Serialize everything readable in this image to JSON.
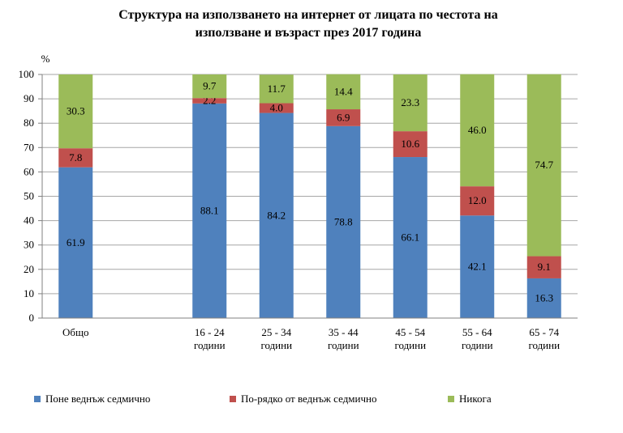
{
  "title_line1": "Структура на използването на интернет от лицата по честота на",
  "title_line2": "използване и възраст през 2017 година",
  "chart_data": {
    "type": "bar",
    "stacked": true,
    "ylabel": "%",
    "ylim": [
      0,
      100
    ],
    "yticks": [
      0,
      10,
      20,
      30,
      40,
      50,
      60,
      70,
      80,
      90,
      100
    ],
    "grid": true,
    "legend_position": "bottom",
    "categories": [
      [
        "Общо"
      ],
      [
        "16 - 24",
        "години"
      ],
      [
        "25 - 34",
        "години"
      ],
      [
        "35 - 44",
        "години"
      ],
      [
        "45 - 54",
        "години"
      ],
      [
        "55 - 64",
        "години"
      ],
      [
        "65 - 74",
        "години"
      ]
    ],
    "series": [
      {
        "name": "Поне веднъж седмично",
        "color": "#4f81bd",
        "values": [
          61.9,
          88.1,
          84.2,
          78.8,
          66.1,
          42.1,
          16.3
        ]
      },
      {
        "name": "По-рядко от веднъж седмично",
        "color": "#c0504d",
        "values": [
          7.8,
          2.2,
          4.0,
          6.9,
          10.6,
          12.0,
          9.1
        ]
      },
      {
        "name": "Никога",
        "color": "#9bbb59",
        "values": [
          30.3,
          9.7,
          11.7,
          14.4,
          23.3,
          46.0,
          74.7
        ]
      }
    ]
  }
}
